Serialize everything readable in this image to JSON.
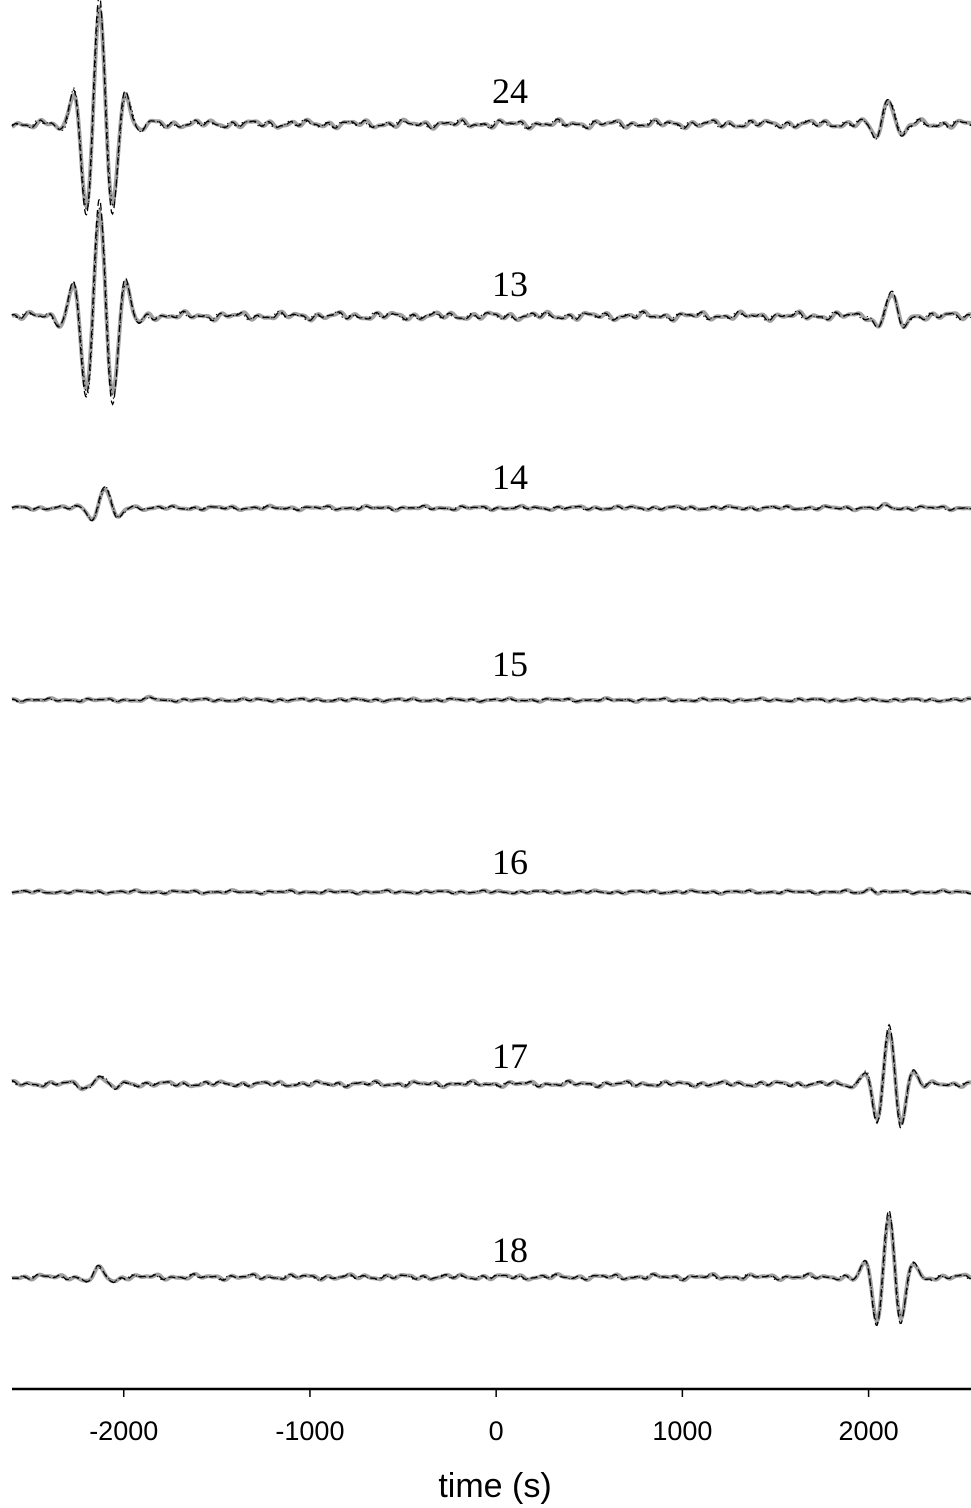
{
  "chart_data": {
    "type": "line",
    "title": "",
    "xlabel": "time (s)",
    "ylabel": "",
    "xlim": [
      -2600,
      2550
    ],
    "xticks": [
      -2000,
      -1000,
      0,
      1000,
      2000
    ],
    "xtick_labels": [
      "-2000",
      "-1000",
      "0",
      "1000",
      "2000"
    ],
    "grid": false,
    "legend": "none",
    "line_styles": {
      "observed": {
        "color": "#a0a0a0",
        "style": "solid-thick"
      },
      "synthetic_a": {
        "color": "#000000",
        "style": "dashed"
      },
      "synthetic_b": {
        "color": "#000000",
        "style": "dotted"
      }
    },
    "traces": [
      {
        "label": "24",
        "neg_wavepacket": {
          "center": -2130,
          "amplitude": 1.0,
          "width": 130,
          "period": 150
        },
        "pos_wavepacket": {
          "center": 2110,
          "amplitude": 0.22,
          "width": 90,
          "period": 170
        },
        "noise": 0.03
      },
      {
        "label": "13",
        "neg_wavepacket": {
          "center": -2130,
          "amplitude": 0.95,
          "width": 130,
          "period": 150
        },
        "pos_wavepacket": {
          "center": 2120,
          "amplitude": 0.18,
          "width": 90,
          "period": 170
        },
        "noise": 0.03
      },
      {
        "label": "14",
        "neg_wavepacket": {
          "center": -2100,
          "amplitude": 0.18,
          "width": 90,
          "period": 160
        },
        "pos_wavepacket": {
          "center": 2100,
          "amplitude": 0.02,
          "width": 60,
          "period": 160
        },
        "noise": 0.015
      },
      {
        "label": "15",
        "neg_wavepacket": {
          "center": -1850,
          "amplitude": 0.02,
          "width": 50,
          "period": 150
        },
        "pos_wavepacket": {
          "center": 2100,
          "amplitude": 0.0,
          "width": 60,
          "period": 160
        },
        "noise": 0.012
      },
      {
        "label": "16",
        "neg_wavepacket": {
          "center": -2100,
          "amplitude": 0.0,
          "width": 60,
          "period": 160
        },
        "pos_wavepacket": {
          "center": 2010,
          "amplitude": 0.03,
          "width": 50,
          "period": 150
        },
        "noise": 0.012
      },
      {
        "label": "17",
        "neg_wavepacket": {
          "center": -2130,
          "amplitude": 0.07,
          "width": 100,
          "period": 170
        },
        "pos_wavepacket": {
          "center": 2110,
          "amplitude": 0.48,
          "width": 110,
          "period": 140
        },
        "noise": 0.02
      },
      {
        "label": "18",
        "neg_wavepacket": {
          "center": -2130,
          "amplitude": 0.07,
          "width": 100,
          "period": 170
        },
        "pos_wavepacket": {
          "center": 2110,
          "amplitude": 0.55,
          "width": 110,
          "period": 140
        },
        "noise": 0.02
      }
    ]
  }
}
